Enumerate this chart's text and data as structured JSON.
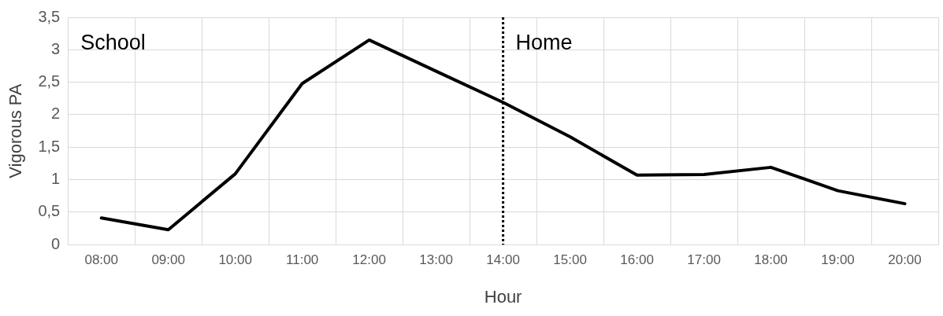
{
  "chart_data": {
    "type": "line",
    "xlabel": "Hour",
    "ylabel": "Vigorous PA",
    "categories": [
      "08:00",
      "09:00",
      "10:00",
      "11:00",
      "12:00",
      "13:00",
      "14:00",
      "15:00",
      "16:00",
      "17:00",
      "18:00",
      "19:00",
      "20:00"
    ],
    "series": [
      {
        "color": "#000000",
        "values": [
          0.41,
          0.23,
          1.09,
          2.48,
          3.15,
          2.67,
          2.19,
          1.66,
          1.07,
          1.08,
          1.19,
          0.83,
          0.63
        ]
      }
    ],
    "ylim": [
      0,
      3.5
    ],
    "yticks": [
      0,
      {
        "value": 0.5,
        "label": "0,5"
      },
      1,
      {
        "value": 1.5,
        "label": "1,5"
      },
      2,
      {
        "value": 2.5,
        "label": "2,5"
      },
      3,
      {
        "value": 3.5,
        "label": "3,5"
      }
    ],
    "ref_lines": [
      {
        "axis": "x",
        "value": "14:00",
        "color": "#000000",
        "line_style": "dotted"
      }
    ],
    "annotations": [
      "School",
      "Home"
    ],
    "grid": true,
    "legend": false,
    "marker": "none",
    "line_style": "solid"
  }
}
